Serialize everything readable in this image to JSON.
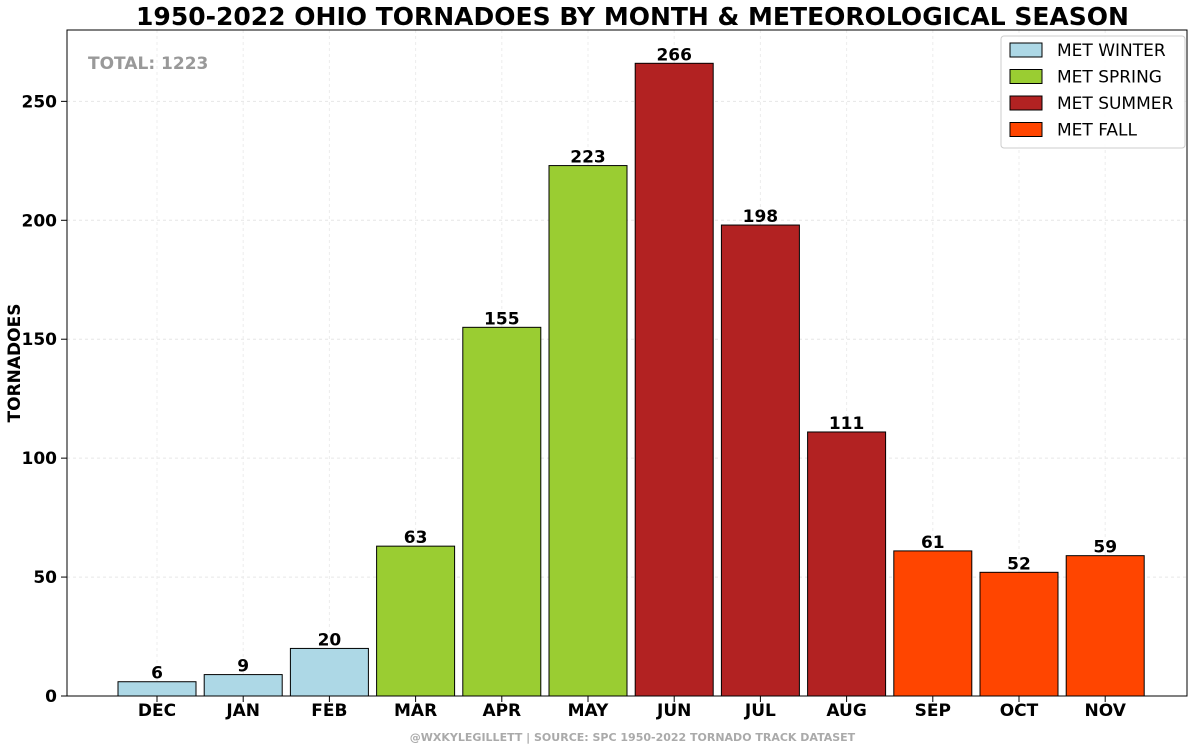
{
  "chart_data": {
    "type": "bar",
    "title": "1950-2022 OHIO TORNADOES BY MONTH & METEOROLOGICAL SEASON",
    "xlabel": "",
    "ylabel": "TORNADOES",
    "ylim": [
      0,
      280
    ],
    "yticks": [
      0,
      50,
      100,
      150,
      200,
      250
    ],
    "grid": true,
    "legend_position": "top-right",
    "categories": [
      "DEC",
      "JAN",
      "FEB",
      "MAR",
      "APR",
      "MAY",
      "JUN",
      "JUL",
      "AUG",
      "SEP",
      "OCT",
      "NOV"
    ],
    "values": [
      6,
      9,
      20,
      63,
      155,
      223,
      266,
      198,
      111,
      61,
      52,
      59
    ],
    "season_index": [
      0,
      0,
      0,
      1,
      1,
      1,
      2,
      2,
      2,
      3,
      3,
      3
    ],
    "seasons": [
      {
        "name": "MET WINTER",
        "color": "#add8e6"
      },
      {
        "name": "MET SPRING",
        "color": "#9acd32"
      },
      {
        "name": "MET SUMMER",
        "color": "#b22222"
      },
      {
        "name": "MET FALL",
        "color": "#ff4500"
      }
    ],
    "annotation": "TOTAL: 1223"
  },
  "footer": "@WXKYLEGILLETT | SOURCE: SPC 1950-2022 TORNADO TRACK DATASET"
}
